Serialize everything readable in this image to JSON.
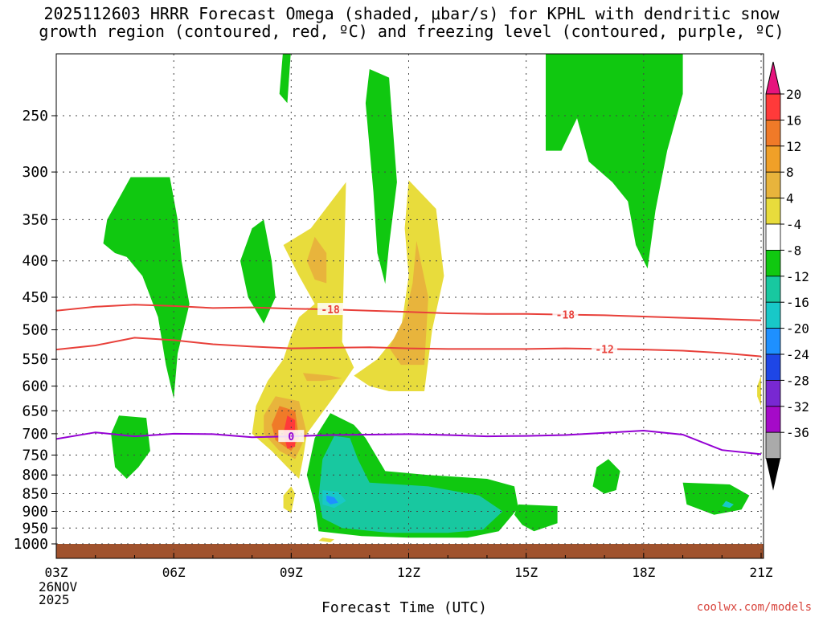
{
  "title_line1": "2025112603 HRRR Forecast Omega (shaded, μbar/s) for KPHL with dendritic snow",
  "title_line2": "growth region (contoured, red, ºC) and freezing level (contoured, purple, ºC)",
  "credit": "coolwx.com/models",
  "chart_data": {
    "type": "heatmap",
    "title": "2025112603 HRRR Forecast Omega (shaded, μbar/s) for KPHL with dendritic snow growth region (contoured, red, ºC) and freezing level (contoured, purple, ºC)",
    "xlabel": "Forecast Time (UTC)",
    "ylabel": "",
    "x_ticks": [
      {
        "hour": 0,
        "label": "03Z",
        "sub": [
          "26NOV",
          "2025"
        ]
      },
      {
        "hour": 3,
        "label": "06Z"
      },
      {
        "hour": 6,
        "label": "09Z"
      },
      {
        "hour": 9,
        "label": "12Z"
      },
      {
        "hour": 12,
        "label": "15Z"
      },
      {
        "hour": 15,
        "label": "18Z"
      },
      {
        "hour": 18,
        "label": "21Z"
      }
    ],
    "xlim": [
      0,
      18
    ],
    "y_ticks": [
      250,
      300,
      350,
      400,
      450,
      500,
      550,
      600,
      650,
      700,
      750,
      800,
      850,
      900,
      950,
      1000
    ],
    "ylim_hpa": [
      200,
      1030
    ],
    "colorbar": {
      "labels": [
        "20",
        "16",
        "12",
        "8",
        "4",
        "-4",
        "-8",
        "-12",
        "-16",
        "-20",
        "-24",
        "-28",
        "-32",
        "-36"
      ],
      "colors": [
        "#ff3a3a",
        "#f07a28",
        "#f0a028",
        "#e8b43c",
        "#e8dc3c",
        "#ffffff",
        "#10c810",
        "#18c8a0",
        "#18c8c8",
        "#1e90ff",
        "#1e46e6",
        "#7828d2",
        "#a50ac8",
        "#aaaaaa"
      ],
      "top_color": "#e6147d",
      "bottom_color": "#000000"
    },
    "contours": [
      {
        "label": "-18",
        "color": "#e8403a",
        "points": [
          [
            0,
            470
          ],
          [
            1,
            464
          ],
          [
            2,
            461
          ],
          [
            3,
            463
          ],
          [
            4,
            466
          ],
          [
            5,
            465
          ],
          [
            6,
            467
          ],
          [
            7,
            468
          ],
          [
            8,
            470
          ],
          [
            9,
            472
          ],
          [
            10,
            474
          ],
          [
            11,
            475
          ],
          [
            12,
            475
          ],
          [
            13,
            476
          ],
          [
            14,
            477
          ],
          [
            15,
            479
          ],
          [
            16,
            481
          ],
          [
            17,
            483
          ],
          [
            18,
            485
          ]
        ]
      },
      {
        "label": "-12",
        "color": "#e8403a",
        "points": [
          [
            0,
            533
          ],
          [
            1,
            526
          ],
          [
            2,
            513
          ],
          [
            3,
            517
          ],
          [
            4,
            524
          ],
          [
            5,
            528
          ],
          [
            6,
            531
          ],
          [
            7,
            530
          ],
          [
            8,
            529
          ],
          [
            9,
            531
          ],
          [
            10,
            532
          ],
          [
            11,
            532
          ],
          [
            12,
            532
          ],
          [
            13,
            531
          ],
          [
            14,
            532
          ],
          [
            15,
            533
          ],
          [
            16,
            535
          ],
          [
            17,
            539
          ],
          [
            18,
            545
          ]
        ]
      },
      {
        "label": "0",
        "color": "#9400d3",
        "points": [
          [
            0,
            712
          ],
          [
            1,
            697
          ],
          [
            2,
            706
          ],
          [
            3,
            700
          ],
          [
            4,
            701
          ],
          [
            5,
            708
          ],
          [
            6,
            706
          ],
          [
            7,
            703
          ],
          [
            8,
            702
          ],
          [
            9,
            701
          ],
          [
            10,
            703
          ],
          [
            11,
            706
          ],
          [
            12,
            705
          ],
          [
            13,
            703
          ],
          [
            14,
            698
          ],
          [
            15,
            693
          ],
          [
            16,
            702
          ],
          [
            17,
            738
          ],
          [
            18,
            748
          ]
        ]
      }
    ],
    "regions": [
      {
        "color": "#10c810",
        "points": [
          [
            6.0,
            200
          ],
          [
            5.9,
            240
          ],
          [
            5.7,
            233
          ],
          [
            5.8,
            200
          ]
        ]
      },
      {
        "color": "#10c810",
        "points": [
          [
            8.0,
            215
          ],
          [
            8.5,
            221
          ],
          [
            8.7,
            310
          ],
          [
            8.5,
            380
          ],
          [
            8.4,
            431
          ],
          [
            8.2,
            390
          ],
          [
            8.1,
            320
          ],
          [
            7.9,
            240
          ]
        ]
      },
      {
        "color": "#10c810",
        "points": [
          [
            12.5,
            200
          ],
          [
            16,
            200
          ],
          [
            16.0,
            233
          ],
          [
            15.6,
            280
          ],
          [
            15.3,
            340
          ],
          [
            15.1,
            410
          ],
          [
            14.8,
            380
          ],
          [
            14.6,
            330
          ],
          [
            14.2,
            310
          ],
          [
            13.6,
            290
          ],
          [
            13.3,
            252
          ],
          [
            12.9,
            280
          ],
          [
            12.5,
            280
          ]
        ]
      },
      {
        "color": "#10c810",
        "points": [
          [
            1.9,
            305
          ],
          [
            2.9,
            305
          ],
          [
            3.1,
            350
          ],
          [
            3.2,
            400
          ],
          [
            3.4,
            460
          ],
          [
            3.1,
            540
          ],
          [
            3.0,
            625
          ],
          [
            2.8,
            560
          ],
          [
            2.6,
            480
          ],
          [
            2.2,
            420
          ],
          [
            1.8,
            395
          ],
          [
            1.5,
            390
          ],
          [
            1.2,
            378
          ],
          [
            1.3,
            350
          ]
        ]
      },
      {
        "color": "#10c810",
        "points": [
          [
            5.3,
            350
          ],
          [
            5.5,
            400
          ],
          [
            5.6,
            450
          ],
          [
            5.3,
            490
          ],
          [
            4.9,
            450
          ],
          [
            4.7,
            400
          ],
          [
            5.0,
            360
          ]
        ]
      },
      {
        "color": "#10c810",
        "points": [
          [
            1.6,
            660
          ],
          [
            2.3,
            665
          ],
          [
            2.4,
            740
          ],
          [
            2.1,
            780
          ],
          [
            1.8,
            810
          ],
          [
            1.5,
            780
          ],
          [
            1.4,
            700
          ]
        ]
      },
      {
        "color": "#10c810",
        "points": [
          [
            7.0,
            655
          ],
          [
            7.6,
            680
          ],
          [
            7.9,
            710
          ],
          [
            8.4,
            790
          ],
          [
            9.5,
            800
          ],
          [
            11,
            810
          ],
          [
            11.7,
            830
          ],
          [
            11.8,
            890
          ],
          [
            11.3,
            960
          ],
          [
            10.5,
            980
          ],
          [
            9,
            980
          ],
          [
            7.8,
            975
          ],
          [
            6.7,
            960
          ],
          [
            6.6,
            880
          ],
          [
            6.4,
            800
          ],
          [
            6.6,
            710
          ]
        ]
      },
      {
        "color": "#18c8a0",
        "points": [
          [
            7.1,
            705
          ],
          [
            7.5,
            710
          ],
          [
            7.7,
            760
          ],
          [
            8,
            820
          ],
          [
            9.5,
            830
          ],
          [
            10.8,
            855
          ],
          [
            11.4,
            900
          ],
          [
            10.9,
            955
          ],
          [
            10,
            965
          ],
          [
            8.5,
            965
          ],
          [
            7.3,
            950
          ],
          [
            6.8,
            920
          ],
          [
            6.7,
            860
          ],
          [
            6.8,
            760
          ]
        ]
      },
      {
        "color": "#18c8c8",
        "points": [
          [
            6.8,
            840
          ],
          [
            7.2,
            845
          ],
          [
            7.4,
            870
          ],
          [
            7.1,
            890
          ],
          [
            6.8,
            880
          ]
        ]
      },
      {
        "color": "#1e90ff",
        "points": [
          [
            6.9,
            855
          ],
          [
            7.1,
            860
          ],
          [
            7.2,
            875
          ],
          [
            7.0,
            880
          ],
          [
            6.9,
            870
          ]
        ]
      },
      {
        "color": "#10c810",
        "points": [
          [
            11.8,
            880
          ],
          [
            12.8,
            885
          ],
          [
            12.8,
            935
          ],
          [
            12.2,
            960
          ],
          [
            11.9,
            940
          ],
          [
            11.7,
            910
          ]
        ]
      },
      {
        "color": "#10c810",
        "points": [
          [
            14.1,
            760
          ],
          [
            14.4,
            790
          ],
          [
            14.3,
            840
          ],
          [
            14.0,
            850
          ],
          [
            13.7,
            830
          ],
          [
            13.8,
            780
          ]
        ]
      },
      {
        "color": "#10c810",
        "points": [
          [
            16.0,
            820
          ],
          [
            17.2,
            825
          ],
          [
            17.7,
            855
          ],
          [
            17.5,
            895
          ],
          [
            16.8,
            910
          ],
          [
            16.1,
            880
          ]
        ]
      },
      {
        "color": "#18c8c8",
        "points": [
          [
            17.1,
            870
          ],
          [
            17.3,
            880
          ],
          [
            17.2,
            890
          ],
          [
            17.0,
            885
          ]
        ]
      },
      {
        "color": "#e8dc3c",
        "points": [
          [
            6.5,
            360
          ],
          [
            7.4,
            310
          ],
          [
            7.3,
            520
          ],
          [
            7.6,
            565
          ],
          [
            7.1,
            620
          ],
          [
            6.4,
            700
          ],
          [
            6.3,
            760
          ],
          [
            6.2,
            810
          ],
          [
            5.9,
            780
          ],
          [
            5.5,
            740
          ],
          [
            5.0,
            700
          ],
          [
            5.1,
            640
          ],
          [
            5.4,
            590
          ],
          [
            5.8,
            550
          ],
          [
            6.0,
            510
          ],
          [
            6.2,
            480
          ],
          [
            6.6,
            460
          ],
          [
            6.2,
            420
          ],
          [
            5.8,
            380
          ]
        ]
      },
      {
        "color": "#e8dc3c",
        "points": [
          [
            9.0,
            308
          ],
          [
            9.7,
            338
          ],
          [
            9.9,
            420
          ],
          [
            9.6,
            500
          ],
          [
            9.4,
            610
          ],
          [
            8.5,
            610
          ],
          [
            8.0,
            600
          ],
          [
            7.6,
            580
          ],
          [
            8.2,
            550
          ],
          [
            8.8,
            500
          ],
          [
            9.0,
            420
          ],
          [
            8.9,
            360
          ]
        ]
      },
      {
        "color": "#e8b43c",
        "points": [
          [
            6.6,
            370
          ],
          [
            6.9,
            390
          ],
          [
            6.9,
            430
          ],
          [
            6.6,
            425
          ],
          [
            6.4,
            400
          ]
        ]
      },
      {
        "color": "#e8b43c",
        "points": [
          [
            9.2,
            375
          ],
          [
            9.5,
            450
          ],
          [
            9.4,
            560
          ],
          [
            8.8,
            560
          ],
          [
            8.5,
            530
          ],
          [
            8.9,
            480
          ],
          [
            9.1,
            430
          ]
        ]
      },
      {
        "color": "#e8b43c",
        "points": [
          [
            6.3,
            575
          ],
          [
            7.0,
            580
          ],
          [
            7.3,
            585
          ],
          [
            6.8,
            590
          ],
          [
            6.4,
            590
          ]
        ]
      },
      {
        "color": "#e8b43c",
        "points": [
          [
            5.6,
            620
          ],
          [
            6.2,
            630
          ],
          [
            6.4,
            700
          ],
          [
            6.1,
            760
          ],
          [
            5.7,
            740
          ],
          [
            5.3,
            700
          ],
          [
            5.3,
            660
          ]
        ]
      },
      {
        "color": "#f07a28",
        "points": [
          [
            5.7,
            640
          ],
          [
            6.1,
            650
          ],
          [
            6.2,
            710
          ],
          [
            6.0,
            740
          ],
          [
            5.6,
            715
          ],
          [
            5.5,
            680
          ]
        ]
      },
      {
        "color": "#ff3a3a",
        "points": [
          [
            5.9,
            660
          ],
          [
            6.1,
            670
          ],
          [
            6.1,
            730
          ],
          [
            5.9,
            735
          ],
          [
            5.8,
            700
          ]
        ]
      },
      {
        "color": "#e8dc3c",
        "points": [
          [
            6.0,
            830
          ],
          [
            6.1,
            850
          ],
          [
            6.0,
            905
          ],
          [
            5.8,
            890
          ],
          [
            5.8,
            855
          ]
        ]
      },
      {
        "color": "#e8dc3c",
        "points": [
          [
            6.8,
            980
          ],
          [
            7.1,
            985
          ],
          [
            7.0,
            995
          ],
          [
            6.7,
            990
          ]
        ]
      },
      {
        "color": "#e8dc3c",
        "points": [
          [
            18.0,
            580
          ],
          [
            18.0,
            640
          ],
          [
            17.9,
            620
          ],
          [
            17.9,
            600
          ]
        ]
      }
    ]
  }
}
